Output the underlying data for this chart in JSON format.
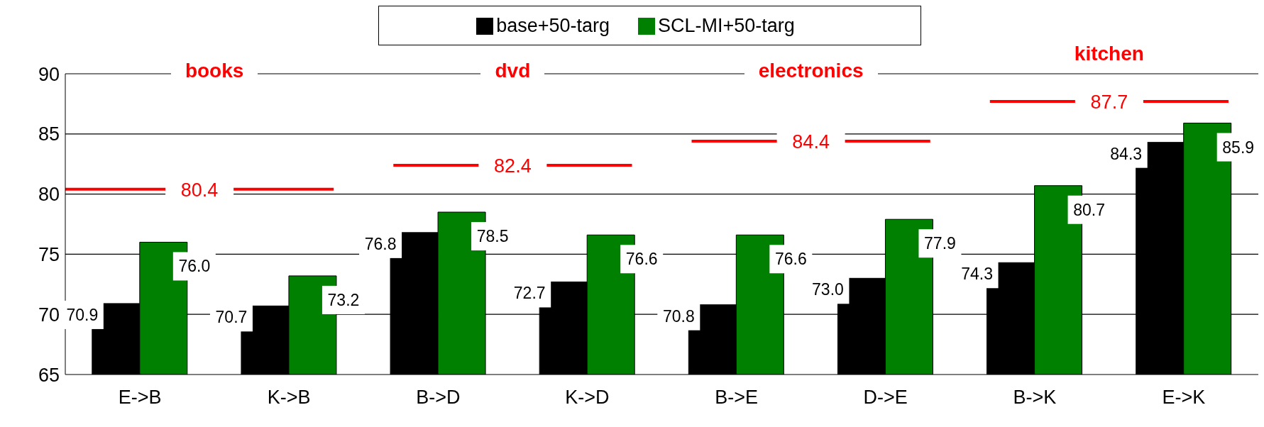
{
  "chart_data": {
    "type": "bar",
    "categories": [
      "E->B",
      "K->B",
      "B->D",
      "K->D",
      "B->E",
      "D->E",
      "B->K",
      "E->K"
    ],
    "series": [
      {
        "name": "base+50-targ",
        "color": "#000000",
        "values": [
          70.9,
          70.7,
          76.8,
          72.7,
          70.8,
          73.0,
          74.3,
          84.3
        ],
        "value_labels": [
          "70.9",
          "70.7",
          "76.8",
          "72.7",
          "70.8",
          "73.0",
          "74.3",
          "84.3"
        ]
      },
      {
        "name": "SCL-MI+50-targ",
        "color": "#008000",
        "values": [
          76.0,
          73.2,
          78.5,
          76.6,
          76.6,
          77.9,
          80.7,
          85.9
        ],
        "value_labels": [
          "76.0",
          "73.2",
          "78.5",
          "76.6",
          "76.6",
          "77.9",
          "80.7",
          "85.9"
        ]
      }
    ],
    "ylim": [
      65,
      90
    ],
    "yticks": [
      65,
      70,
      75,
      80,
      85,
      90
    ],
    "grid": "y",
    "legend": "top",
    "ref_lines": [
      {
        "axis": "y",
        "value": 80.4,
        "label": "80.4",
        "color": "#ff0000"
      },
      {
        "axis": "y",
        "value": 82.4,
        "label": "82.4",
        "color": "#ff0000"
      },
      {
        "axis": "y",
        "value": 84.4,
        "label": "84.4",
        "color": "#ff0000"
      },
      {
        "axis": "y",
        "value": 87.7,
        "label": "87.7",
        "color": "#ff0000"
      }
    ],
    "annotations": [
      "books",
      "dvd",
      "electronics",
      "kitchen"
    ]
  }
}
